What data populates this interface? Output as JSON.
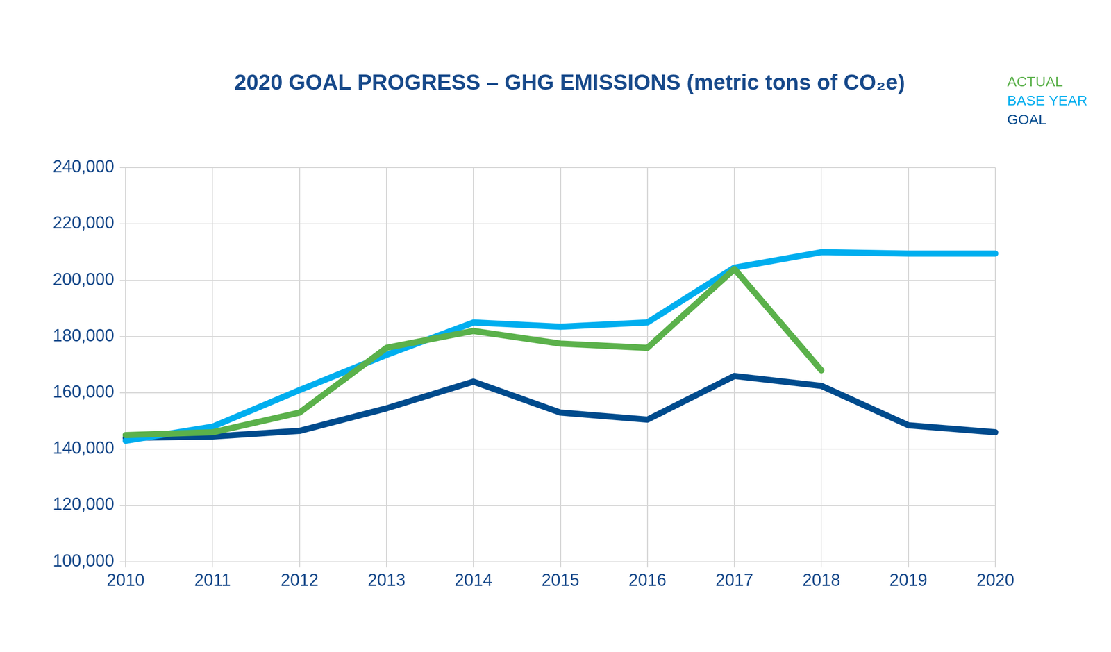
{
  "chart_data": {
    "type": "line",
    "title": "2020 GOAL PROGRESS – GHG EMISSIONS (metric tons of CO₂e)",
    "categories": [
      "2010",
      "2011",
      "2012",
      "2013",
      "2014",
      "2015",
      "2016",
      "2017",
      "2018",
      "2019",
      "2020"
    ],
    "series": [
      {
        "name": "ACTUAL",
        "color": "#5bb14b",
        "values": [
          145000,
          146000,
          153000,
          176000,
          182000,
          177500,
          176000,
          204000,
          168000,
          null,
          null
        ]
      },
      {
        "name": "BASE YEAR",
        "color": "#00aeef",
        "values": [
          143000,
          148000,
          161000,
          173500,
          185000,
          183500,
          185000,
          204500,
          210000,
          209500,
          209500
        ]
      },
      {
        "name": "GOAL",
        "color": "#004b8d",
        "values": [
          144000,
          144500,
          146500,
          154500,
          164000,
          153000,
          150500,
          166000,
          162500,
          148500,
          146000
        ]
      }
    ],
    "ylim": [
      100000,
      240000
    ],
    "yticks": [
      {
        "value": 100000,
        "label": "100,000"
      },
      {
        "value": 120000,
        "label": "120,000"
      },
      {
        "value": 140000,
        "label": "140,000"
      },
      {
        "value": 160000,
        "label": "160,000"
      },
      {
        "value": 180000,
        "label": "180,000"
      },
      {
        "value": 200000,
        "label": "200,000"
      },
      {
        "value": 220000,
        "label": "220,000"
      },
      {
        "value": 240000,
        "label": "240,000"
      }
    ],
    "grid": true,
    "legend": "right"
  }
}
